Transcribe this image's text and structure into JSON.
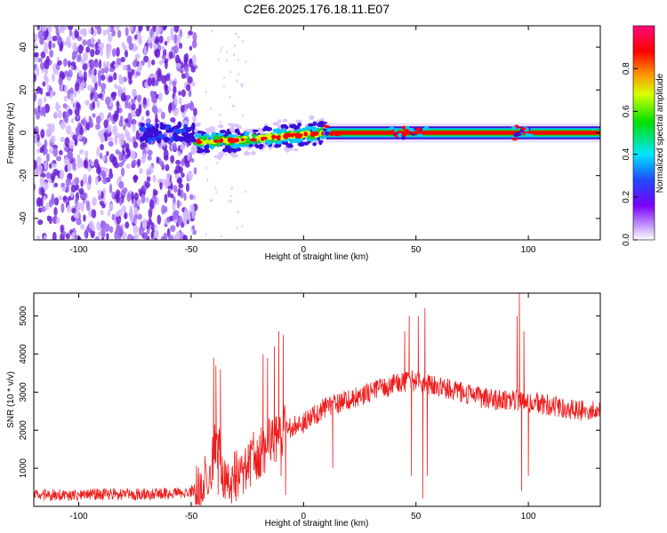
{
  "title": "C2E6.2025.176.18.11.E07",
  "colors": {
    "snr_line": "#ee1c1c",
    "ridge": "#ff0000",
    "noise": "#6a1fd6",
    "frame": "#000000"
  },
  "chart_data": [
    {
      "type": "heatmap",
      "title": "C2E6.2025.176.18.11.E07",
      "xlabel": "Height of straight line (km)",
      "ylabel": "Frequency (Hz)",
      "xlim": [
        -120,
        132
      ],
      "ylim": [
        -50,
        50
      ],
      "xticks": [
        -100,
        -50,
        0,
        50,
        100
      ],
      "yticks": [
        -40,
        -20,
        0,
        20,
        40
      ],
      "colorbar": {
        "label": "Normalized spectral amplitude",
        "ticks": [
          0.0,
          0.2,
          0.4,
          0.6,
          0.8
        ],
        "range": [
          0,
          1
        ],
        "colormap": "rainbow (white → violet → blue → cyan → green → yellow → orange → red → magenta)"
      },
      "features": [
        {
          "description": "broadband noise",
          "x_range": [
            -120,
            -48
          ],
          "y_range": [
            -50,
            50
          ],
          "level": 0.1
        },
        {
          "description": "onset cluster",
          "x_range": [
            -72,
            -48
          ],
          "y_center": 0,
          "level": 0.3
        },
        {
          "description": "ridge with drift",
          "x_range": [
            -48,
            10
          ],
          "y_center_range": [
            -6,
            0
          ],
          "level": 0.7
        },
        {
          "description": "narrow carrier ridge",
          "x_range": [
            10,
            132
          ],
          "y_center": 0,
          "level": 0.9
        }
      ]
    },
    {
      "type": "line",
      "xlabel": "Height of straight line (km)",
      "ylabel": "SNR (10 * v/v)",
      "xlim": [
        -120,
        132
      ],
      "ylim": [
        0,
        5600
      ],
      "xticks": [
        -100,
        -50,
        0,
        50,
        100
      ],
      "yticks": [
        1000,
        2000,
        3000,
        4000,
        5000
      ],
      "envelope": [
        {
          "x": -120,
          "y": 300
        },
        {
          "x": -100,
          "y": 300
        },
        {
          "x": -70,
          "y": 320
        },
        {
          "x": -52,
          "y": 340
        },
        {
          "x": -46,
          "y": 500
        },
        {
          "x": -42,
          "y": 800
        },
        {
          "x": -39,
          "y": 1800
        },
        {
          "x": -36,
          "y": 900
        },
        {
          "x": -32,
          "y": 700
        },
        {
          "x": -28,
          "y": 900
        },
        {
          "x": -22,
          "y": 1300
        },
        {
          "x": -18,
          "y": 1500
        },
        {
          "x": -12,
          "y": 1800
        },
        {
          "x": -8,
          "y": 2000
        },
        {
          "x": 0,
          "y": 2200
        },
        {
          "x": 10,
          "y": 2600
        },
        {
          "x": 20,
          "y": 2800
        },
        {
          "x": 30,
          "y": 3000
        },
        {
          "x": 40,
          "y": 3200
        },
        {
          "x": 48,
          "y": 3300
        },
        {
          "x": 56,
          "y": 3200
        },
        {
          "x": 65,
          "y": 3100
        },
        {
          "x": 75,
          "y": 2900
        },
        {
          "x": 85,
          "y": 2800
        },
        {
          "x": 95,
          "y": 2800
        },
        {
          "x": 105,
          "y": 2700
        },
        {
          "x": 115,
          "y": 2600
        },
        {
          "x": 125,
          "y": 2500
        },
        {
          "x": 132,
          "y": 2500
        }
      ],
      "spikes": [
        {
          "x": -40,
          "y": 3900
        },
        {
          "x": -39,
          "y": 3700
        },
        {
          "x": -38,
          "y": 300
        },
        {
          "x": -37,
          "y": 3600
        },
        {
          "x": -36,
          "y": 400
        },
        {
          "x": -18,
          "y": 4000
        },
        {
          "x": -16,
          "y": 3900
        },
        {
          "x": -13,
          "y": 4200
        },
        {
          "x": -11,
          "y": 4600
        },
        {
          "x": -10,
          "y": 800
        },
        {
          "x": -9,
          "y": 4500
        },
        {
          "x": -8,
          "y": 300
        },
        {
          "x": 13,
          "y": 1000
        },
        {
          "x": 45,
          "y": 4600
        },
        {
          "x": 47,
          "y": 5000
        },
        {
          "x": 48,
          "y": 800
        },
        {
          "x": 51,
          "y": 5000
        },
        {
          "x": 53,
          "y": 200
        },
        {
          "x": 54,
          "y": 5200
        },
        {
          "x": 55,
          "y": 800
        },
        {
          "x": 95,
          "y": 5000
        },
        {
          "x": 96,
          "y": 5600
        },
        {
          "x": 97,
          "y": 400
        },
        {
          "x": 98,
          "y": 4600
        },
        {
          "x": 100,
          "y": 800
        }
      ]
    }
  ]
}
